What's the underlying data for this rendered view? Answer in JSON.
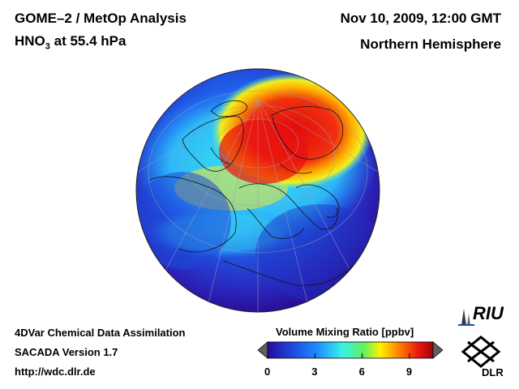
{
  "header": {
    "title_main": "GOME–2 / MetOp Analysis",
    "species_base": "HNO",
    "species_sub": "3",
    "species_level": " at 55.4 hPa",
    "date": "Nov 10, 2009, 12:00 GMT",
    "region": "Northern Hemisphere"
  },
  "footer": {
    "line1": "4DVar Chemical Data Assimilation",
    "line2": "SACADA Version 1.7",
    "line3": "http://wdc.dlr.de"
  },
  "colorbar": {
    "label": "Volume Mixing Ratio [ppbv]",
    "ticks": [
      "0",
      "3",
      "6",
      "9"
    ],
    "range": [
      0,
      10.5
    ],
    "tick_values": [
      0,
      3,
      6,
      9
    ]
  },
  "logos": {
    "riu": "RIU",
    "dlr": "DLR"
  },
  "colors": {
    "low": "#2a0a9e",
    "mid_low": "#1e8cff",
    "mid": "#38f0e8",
    "mid_high": "#fff200",
    "high": "#e81010"
  }
}
